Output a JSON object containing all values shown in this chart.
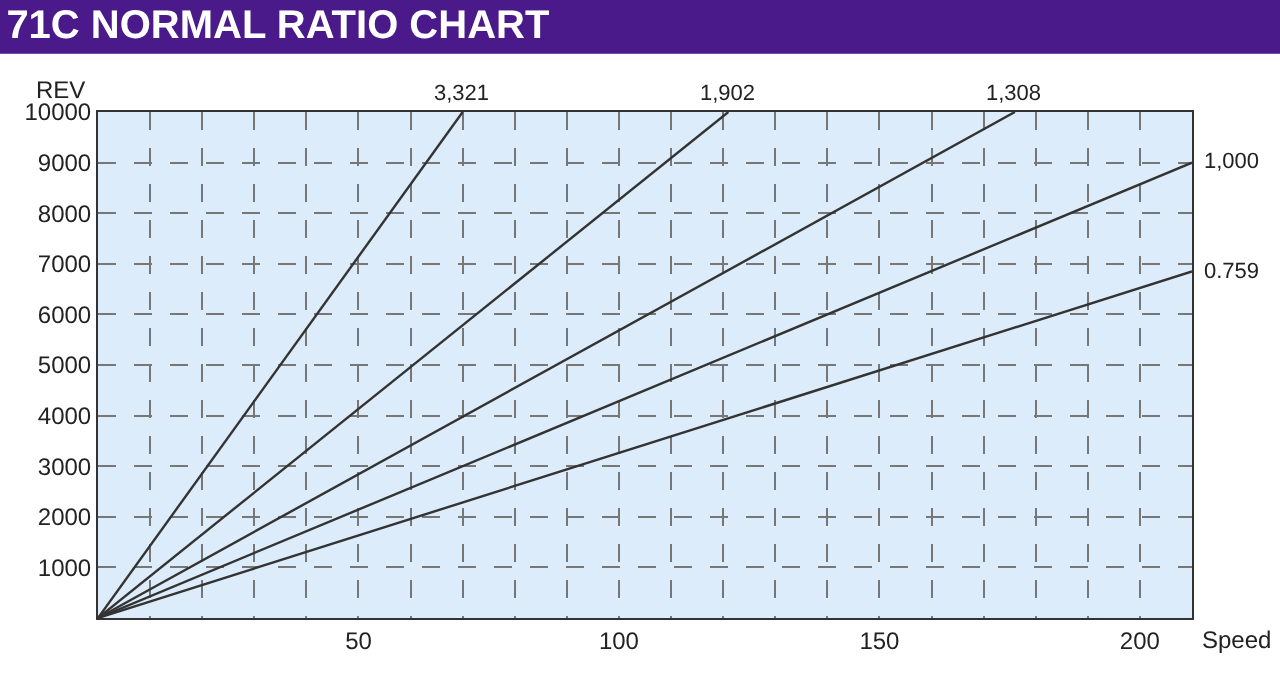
{
  "chart_data": {
    "type": "line",
    "title": "71C NORMAL RATIO CHART",
    "xlabel": "Speed",
    "ylabel": "REV",
    "series": [
      {
        "name": "3,321",
        "color": "#333333",
        "x": [
          0,
          70
        ],
        "values": [
          0,
          10000
        ]
      },
      {
        "name": "1,902",
        "color": "#333333",
        "x": [
          0,
          121
        ],
        "values": [
          0,
          10000
        ]
      },
      {
        "name": "1,308",
        "color": "#333333",
        "x": [
          0,
          176
        ],
        "values": [
          0,
          10000
        ]
      },
      {
        "name": "1,000",
        "color": "#333333",
        "x": [
          0,
          210
        ],
        "values": [
          0,
          9000
        ]
      },
      {
        "name": "0.759",
        "color": "#333333",
        "x": [
          0,
          210
        ],
        "values": [
          0,
          6850
        ]
      }
    ],
    "xlim": [
      0,
      210
    ],
    "ylim": [
      0,
      10000
    ],
    "xticks": [
      {
        "value": 10,
        "label": null
      },
      {
        "value": 20,
        "label": null
      },
      {
        "value": 30,
        "label": null
      },
      {
        "value": 40,
        "label": null
      },
      50,
      {
        "value": 60,
        "label": null
      },
      {
        "value": 70,
        "label": null
      },
      {
        "value": 80,
        "label": null
      },
      {
        "value": 90,
        "label": null
      },
      100,
      {
        "value": 110,
        "label": null
      },
      {
        "value": 120,
        "label": null
      },
      {
        "value": 130,
        "label": null
      },
      {
        "value": 140,
        "label": null
      },
      150,
      {
        "value": 160,
        "label": null
      },
      {
        "value": 170,
        "label": null
      },
      {
        "value": 180,
        "label": null
      },
      {
        "value": 190,
        "label": null
      },
      200
    ],
    "yticks": [
      1000,
      2000,
      3000,
      4000,
      5000,
      6000,
      7000,
      8000,
      9000,
      10000
    ],
    "grid": true,
    "legend": false,
    "marker": "none",
    "line_style": "solid"
  }
}
